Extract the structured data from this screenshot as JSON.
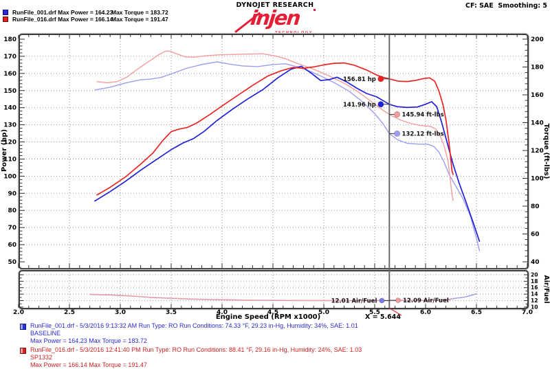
{
  "header": {
    "brand_top": "DYNOJET RESEARCH",
    "logo_text": "injen",
    "logo_sub": "TECHNOLOGY",
    "cf_label": "CF: SAE  Smoothing: 5",
    "legend": [
      {
        "file_power": "RunFile_001.drf Max Power = 164.23",
        "torque": "Max Torque = 183.72",
        "swatch": "#2a2ad8",
        "swatch_border": "#10106e"
      },
      {
        "file_power": "RunFile_016.drf Max Power = 166.14",
        "torque": "Max Torque = 191.47",
        "swatch": "#e02222",
        "swatch_border": "#6e1010"
      }
    ]
  },
  "footer": {
    "runs": [
      {
        "color": "#2a2ac8",
        "swatch": "#2233dd",
        "swatch_border": "#101a77",
        "line1": "RunFile_001.drf - 5/3/2016 9:13:32 AM  Run Type: RO  Run Conditions: 74.33 °F, 29.23 in-Hg,  Humidity:  34%, SAE: 1.01",
        "line2": "BASELINE",
        "line3": "Max Power = 164.23  Max Torque = 183.72"
      },
      {
        "color": "#cc2222",
        "swatch": "#dd2222",
        "swatch_border": "#771010",
        "line1": "RunFile_016.drf - 5/3/2016 12:41:40 PM  Run Type: RO  Run Conditions: 88.41 °F, 29.16 in-Hg,  Humidity:  24%, SAE: 1.03",
        "line2": "SP1332",
        "line3": "Max Power = 166.14  Max Torque = 191.47"
      }
    ]
  },
  "chart_data": {
    "type": "line",
    "xlabel": "Engine Speed (RPM x1000)",
    "x_range": [
      2.0,
      7.0
    ],
    "x_major_step": 0.5,
    "x_minor_step": 0.1,
    "cursor": {
      "x": 5.644,
      "label": "X = 5.644"
    },
    "main_plot": {
      "left_axis": {
        "label": "Power (hp)",
        "min": 50,
        "max": 180,
        "step": 10,
        "minor": 2
      },
      "right_axis": {
        "label": "Torque (ft-lbs)",
        "min": 40,
        "max": 200,
        "step": 20,
        "minor": 4
      },
      "series": [
        {
          "name": "blue-torque-curve",
          "axis": "torque",
          "color": "#9c9cf2",
          "width": 1.4,
          "points": [
            [
              2.75,
              163.5
            ],
            [
              2.9,
              165.5
            ],
            [
              3.05,
              168.5
            ],
            [
              3.2,
              170.8
            ],
            [
              3.3,
              171.3
            ],
            [
              3.4,
              172.5
            ],
            [
              3.5,
              175
            ],
            [
              3.65,
              179
            ],
            [
              3.8,
              181.8
            ],
            [
              3.95,
              183.7
            ],
            [
              4.08,
              182
            ],
            [
              4.2,
              180.8
            ],
            [
              4.35,
              180.3
            ],
            [
              4.5,
              181.8
            ],
            [
              4.62,
              182.3
            ],
            [
              4.75,
              180
            ],
            [
              4.88,
              176.5
            ],
            [
              5.0,
              172.5
            ],
            [
              5.12,
              168
            ],
            [
              5.25,
              162.5
            ],
            [
              5.38,
              155
            ],
            [
              5.5,
              146.5
            ],
            [
              5.58,
              139.5
            ],
            [
              5.644,
              132.12
            ],
            [
              5.73,
              127.5
            ],
            [
              5.82,
              125.2
            ],
            [
              5.92,
              124.6
            ],
            [
              6.02,
              124.5
            ],
            [
              6.08,
              123
            ],
            [
              6.13,
              119
            ],
            [
              6.18,
              112
            ],
            [
              6.23,
              103
            ],
            [
              6.3,
              94
            ],
            [
              6.37,
              85
            ],
            [
              6.44,
              73
            ],
            [
              6.5,
              57
            ],
            [
              6.53,
              48
            ]
          ]
        },
        {
          "name": "red-torque-curve",
          "axis": "torque",
          "color": "#f49c9c",
          "width": 1.4,
          "points": [
            [
              2.77,
              169.5
            ],
            [
              2.87,
              168.7
            ],
            [
              2.97,
              169.5
            ],
            [
              3.07,
              173
            ],
            [
              3.17,
              178.5
            ],
            [
              3.27,
              183.5
            ],
            [
              3.37,
              188.5
            ],
            [
              3.44,
              191.3
            ],
            [
              3.48,
              191.5
            ],
            [
              3.56,
              189.3
            ],
            [
              3.64,
              187.2
            ],
            [
              3.73,
              187
            ],
            [
              3.83,
              188
            ],
            [
              3.95,
              188.7
            ],
            [
              4.1,
              189
            ],
            [
              4.25,
              189.3
            ],
            [
              4.4,
              189.5
            ],
            [
              4.52,
              188
            ],
            [
              4.62,
              186
            ],
            [
              4.74,
              182.5
            ],
            [
              4.86,
              179.5
            ],
            [
              4.98,
              176
            ],
            [
              5.1,
              172
            ],
            [
              5.22,
              167.5
            ],
            [
              5.34,
              162
            ],
            [
              5.46,
              155.5
            ],
            [
              5.56,
              150
            ],
            [
              5.644,
              145.94
            ],
            [
              5.75,
              142
            ],
            [
              5.85,
              139.5
            ],
            [
              5.95,
              138
            ],
            [
              6.05,
              137.3
            ],
            [
              6.1,
              135.5
            ],
            [
              6.14,
              131
            ],
            [
              6.18,
              124
            ],
            [
              6.22,
              113
            ],
            [
              6.26,
              88
            ],
            [
              6.27,
              84
            ]
          ]
        },
        {
          "name": "blue-power-curve",
          "axis": "power",
          "color": "#2020d6",
          "width": 1.7,
          "points": [
            [
              2.75,
              85.5
            ],
            [
              2.9,
              91
            ],
            [
              3.05,
              97
            ],
            [
              3.2,
              103.5
            ],
            [
              3.35,
              109.5
            ],
            [
              3.5,
              115.5
            ],
            [
              3.62,
              119.5
            ],
            [
              3.72,
              122
            ],
            [
              3.82,
              126
            ],
            [
              3.95,
              132.5
            ],
            [
              4.1,
              139
            ],
            [
              4.25,
              145
            ],
            [
              4.4,
              150.5
            ],
            [
              4.55,
              157.5
            ],
            [
              4.68,
              162.5
            ],
            [
              4.78,
              164.2
            ],
            [
              4.88,
              160
            ],
            [
              4.97,
              155.8
            ],
            [
              5.06,
              156.5
            ],
            [
              5.13,
              157.8
            ],
            [
              5.22,
              155.2
            ],
            [
              5.32,
              151.5
            ],
            [
              5.42,
              148.3
            ],
            [
              5.52,
              146.3
            ],
            [
              5.58,
              144.2
            ],
            [
              5.644,
              141.96
            ],
            [
              5.72,
              140.6
            ],
            [
              5.82,
              140.1
            ],
            [
              5.92,
              140.4
            ],
            [
              6.0,
              142
            ],
            [
              6.06,
              143.5
            ],
            [
              6.11,
              140.5
            ],
            [
              6.16,
              131
            ],
            [
              6.21,
              120
            ],
            [
              6.27,
              107
            ],
            [
              6.33,
              96
            ],
            [
              6.4,
              84.5
            ],
            [
              6.47,
              72.5
            ],
            [
              6.53,
              62
            ]
          ]
        },
        {
          "name": "red-power-curve",
          "axis": "power",
          "color": "#ee2424",
          "width": 1.7,
          "points": [
            [
              2.77,
              89
            ],
            [
              2.9,
              93.5
            ],
            [
              3.05,
              99.5
            ],
            [
              3.2,
              107
            ],
            [
              3.32,
              113.5
            ],
            [
              3.42,
              121
            ],
            [
              3.5,
              126
            ],
            [
              3.58,
              127.5
            ],
            [
              3.66,
              128.5
            ],
            [
              3.75,
              131
            ],
            [
              3.88,
              136
            ],
            [
              4.0,
              141
            ],
            [
              4.15,
              147
            ],
            [
              4.3,
              153
            ],
            [
              4.45,
              158.5
            ],
            [
              4.58,
              161.5
            ],
            [
              4.7,
              163.5
            ],
            [
              4.8,
              163
            ],
            [
              4.9,
              163.8
            ],
            [
              5.0,
              165
            ],
            [
              5.1,
              165.9
            ],
            [
              5.2,
              166.1
            ],
            [
              5.3,
              164.8
            ],
            [
              5.42,
              162
            ],
            [
              5.52,
              159
            ],
            [
              5.58,
              157.8
            ],
            [
              5.644,
              156.81
            ],
            [
              5.73,
              155.5
            ],
            [
              5.82,
              155.3
            ],
            [
              5.9,
              155.9
            ],
            [
              5.98,
              157
            ],
            [
              6.04,
              157.4
            ],
            [
              6.09,
              155.5
            ],
            [
              6.13,
              150
            ],
            [
              6.17,
              142
            ],
            [
              6.2,
              133
            ],
            [
              6.23,
              120
            ],
            [
              6.26,
              103
            ],
            [
              6.27,
              101
            ]
          ]
        }
      ],
      "annotations": [
        {
          "text": "156.81 hp",
          "axis": "power",
          "value": 156.81,
          "dot_rpm": 5.56,
          "label_side": "left",
          "color": "#ee2222"
        },
        {
          "text": "141.96 hp",
          "axis": "power",
          "value": 141.96,
          "dot_rpm": 5.56,
          "label_side": "left",
          "color": "#2222dd"
        },
        {
          "text": "145.94 ft-lbs",
          "axis": "torque",
          "value": 145.94,
          "dot_rpm": 5.72,
          "label_side": "right",
          "color": "#f49c9c"
        },
        {
          "text": "132.12 ft-lbs",
          "axis": "torque",
          "value": 132.12,
          "dot_rpm": 5.72,
          "label_side": "right",
          "color": "#9c9cf4"
        }
      ]
    },
    "af_plot": {
      "right_axis": {
        "label": "Air/Fuel",
        "min": 10,
        "max": 20,
        "step": 2,
        "minor": 1
      },
      "series": [
        {
          "name": "blue-af-curve",
          "axis": "af",
          "color": "#8f8ff0",
          "width": 1.3,
          "points": [
            [
              2.7,
              13.9
            ],
            [
              2.9,
              13.75
            ],
            [
              3.1,
              13.4
            ],
            [
              3.3,
              13.0
            ],
            [
              3.5,
              12.7
            ],
            [
              3.7,
              12.45
            ],
            [
              3.9,
              12.3
            ],
            [
              4.1,
              12.2
            ],
            [
              4.3,
              12.1
            ],
            [
              4.5,
              12.05
            ],
            [
              4.8,
              12.0
            ],
            [
              5.1,
              11.98
            ],
            [
              5.4,
              12.0
            ],
            [
              5.644,
              12.01
            ],
            [
              5.9,
              12.0
            ],
            [
              6.1,
              12.1
            ],
            [
              6.25,
              12.5
            ],
            [
              6.4,
              13.2
            ],
            [
              6.5,
              14.1
            ]
          ]
        },
        {
          "name": "red-af-curve",
          "axis": "af",
          "color": "#f29c9c",
          "width": 1.3,
          "points": [
            [
              2.7,
              13.95
            ],
            [
              2.9,
              13.8
            ],
            [
              3.1,
              13.45
            ],
            [
              3.3,
              13.05
            ],
            [
              3.5,
              12.75
            ],
            [
              3.7,
              12.5
            ],
            [
              3.9,
              12.35
            ],
            [
              4.1,
              12.25
            ],
            [
              4.3,
              12.15
            ],
            [
              4.5,
              12.1
            ],
            [
              4.8,
              12.05
            ],
            [
              5.1,
              12.05
            ],
            [
              5.4,
              12.07
            ],
            [
              5.644,
              12.09
            ],
            [
              5.9,
              12.1
            ],
            [
              6.1,
              12.1
            ],
            [
              6.2,
              12.2
            ],
            [
              6.25,
              12.35
            ]
          ]
        }
      ],
      "annotations": [
        {
          "text": "12.01 Air/Fuel",
          "axis": "af",
          "value": 12.01,
          "dot_rpm": 5.57,
          "label_side": "left",
          "color": "#7b7bec"
        },
        {
          "text": "12.09 Air/Fuel",
          "axis": "af",
          "value": 12.09,
          "dot_rpm": 5.73,
          "label_side": "right",
          "color": "#f49c9c"
        }
      ]
    }
  }
}
